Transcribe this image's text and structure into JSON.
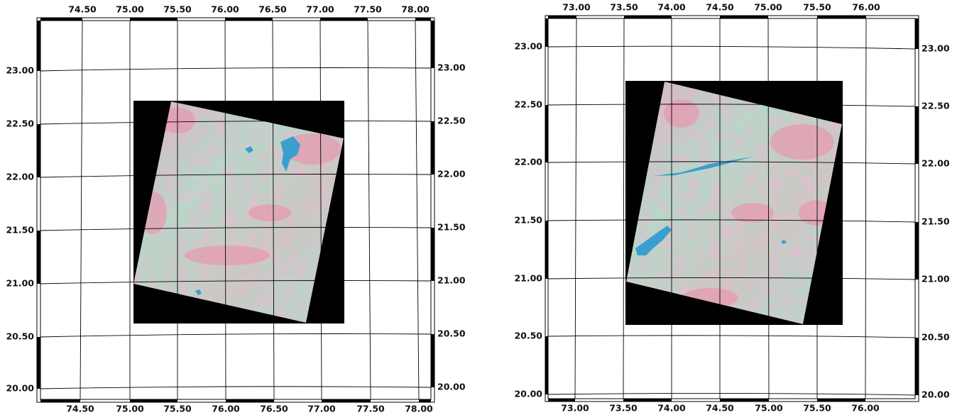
{
  "maps": [
    {
      "lon_top": [
        "74.50",
        "75.00",
        "75.50",
        "76.00",
        "76.50",
        "77.00",
        "77.50",
        "78.00"
      ],
      "lon_bottom": [
        "74.50",
        "75.00",
        "75.50",
        "76.00",
        "76.50",
        "77.00",
        "77.50",
        "78.00"
      ],
      "lat_left": [
        "23.00",
        "22.50",
        "22.00",
        "21.50",
        "21.00",
        "20.50",
        "20.00"
      ],
      "lat_right": [
        "23.00",
        "22.50",
        "22.00",
        "21.50",
        "21.00",
        "20.50",
        "20.00"
      ]
    },
    {
      "lon_top": [
        "73.00",
        "73.50",
        "74.00",
        "74.50",
        "75.00",
        "75.50",
        "76.00"
      ],
      "lon_bottom": [
        "73.00",
        "73.50",
        "74.00",
        "74.50",
        "75.00",
        "75.50",
        "76.00"
      ],
      "lat_left": [
        "23.00",
        "22.50",
        "22.00",
        "21.50",
        "21.00",
        "20.50",
        "20.00"
      ],
      "lat_right": [
        "23.00",
        "22.50",
        "22.00",
        "21.50",
        "21.00",
        "20.50",
        "20.00"
      ]
    }
  ]
}
